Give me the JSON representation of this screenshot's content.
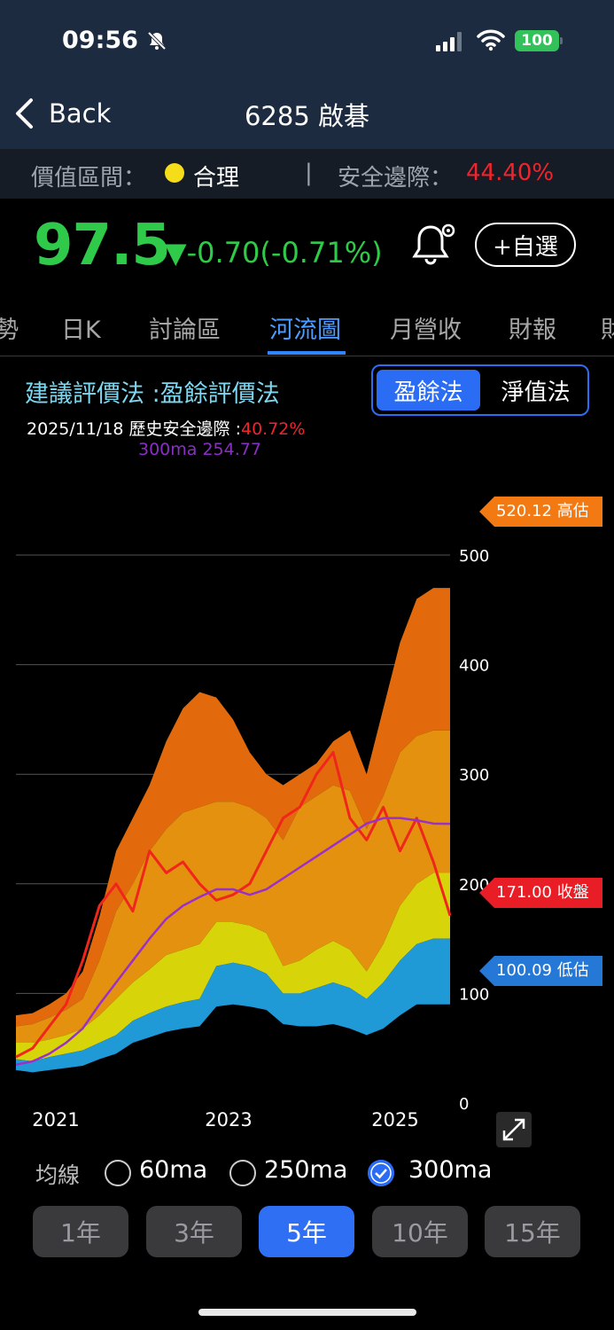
{
  "status": {
    "time": "09:56",
    "battery": "100"
  },
  "nav": {
    "back_label": "Back",
    "title": "6285 啟碁"
  },
  "valuation": {
    "zone_label": "價值區間：",
    "zone_value": "合理",
    "separator": "|",
    "margin_label": "安全邊際：",
    "margin_value": "44.40%"
  },
  "quote": {
    "price": "97.5",
    "change": "▼-0.70(-0.71%)",
    "watch_label": "+自選"
  },
  "tabs": [
    {
      "label": "勢"
    },
    {
      "label": "日K"
    },
    {
      "label": "討論區"
    },
    {
      "label": "河流圖"
    },
    {
      "label": "月營收"
    },
    {
      "label": "財報"
    },
    {
      "label": "財"
    }
  ],
  "method": {
    "title": "建議評價法 :盈餘評價法",
    "options": [
      "盈餘法",
      "淨值法"
    ],
    "date_text": "2025/11/18 歷史安全邊際 :",
    "date_margin": "40.72%",
    "ma_text": "300ma 254.77"
  },
  "chart_data": {
    "type": "area",
    "x_tick_labels": [
      "2021",
      "2023",
      "2025"
    ],
    "y_tick_labels": [
      "0",
      "100",
      "200",
      "300",
      "400",
      "500"
    ],
    "ylim": [
      0,
      520
    ],
    "grid": true,
    "tags": {
      "high": "520.12 高估",
      "close": "171.00 收盤",
      "low": "100.09 低估"
    },
    "colors": {
      "band1": "#1f9ad6",
      "band2": "#d8d40a",
      "band3": "#e3910f",
      "band4": "#e36a0c",
      "price": "#f0261c",
      "ma": "#9b30c8"
    },
    "x": [
      2020.6,
      2020.8,
      2021.0,
      2021.2,
      2021.4,
      2021.6,
      2021.8,
      2022.0,
      2022.2,
      2022.4,
      2022.6,
      2022.8,
      2023.0,
      2023.2,
      2023.4,
      2023.6,
      2023.8,
      2024.0,
      2024.2,
      2024.4,
      2024.6,
      2024.8,
      2025.0,
      2025.2,
      2025.4,
      2025.6,
      2025.8
    ],
    "series": [
      {
        "values": [
          30,
          28,
          30,
          32,
          34,
          40,
          45,
          55,
          60,
          65,
          68,
          70,
          88,
          90,
          88,
          85,
          72,
          70,
          70,
          72,
          68,
          62,
          68,
          80,
          90,
          90,
          90
        ]
      },
      {
        "values": [
          40,
          38,
          42,
          45,
          48,
          55,
          62,
          75,
          82,
          88,
          92,
          95,
          125,
          128,
          125,
          118,
          100,
          100,
          105,
          110,
          105,
          95,
          110,
          130,
          145,
          150,
          150
        ]
      },
      {
        "values": [
          55,
          55,
          58,
          62,
          68,
          80,
          95,
          110,
          122,
          135,
          140,
          145,
          165,
          165,
          162,
          155,
          125,
          130,
          140,
          148,
          140,
          120,
          145,
          180,
          200,
          210,
          210
        ]
      },
      {
        "values": [
          70,
          72,
          78,
          85,
          95,
          130,
          175,
          200,
          230,
          250,
          265,
          270,
          275,
          275,
          270,
          260,
          240,
          270,
          280,
          290,
          285,
          250,
          280,
          320,
          335,
          340,
          340
        ]
      },
      {
        "values": [
          80,
          82,
          90,
          100,
          120,
          170,
          230,
          260,
          290,
          330,
          360,
          375,
          370,
          350,
          320,
          300,
          290,
          300,
          310,
          330,
          340,
          300,
          360,
          420,
          460,
          470,
          470
        ]
      },
      {
        "values": [
          42,
          50,
          70,
          90,
          130,
          180,
          200,
          175,
          230,
          210,
          220,
          200,
          185,
          190,
          200,
          230,
          260,
          270,
          300,
          320,
          260,
          240,
          270,
          230,
          260,
          220,
          171
        ]
      },
      {
        "values": [
          35,
          38,
          45,
          55,
          68,
          90,
          110,
          130,
          150,
          168,
          180,
          188,
          195,
          195,
          190,
          195,
          205,
          215,
          225,
          235,
          245,
          255,
          260,
          260,
          258,
          255,
          254.77
        ]
      }
    ]
  },
  "ma_options": {
    "label": "均線",
    "items": [
      "60ma",
      "250ma",
      "300ma"
    ]
  },
  "ranges": [
    "1年",
    "3年",
    "5年",
    "10年",
    "15年"
  ]
}
